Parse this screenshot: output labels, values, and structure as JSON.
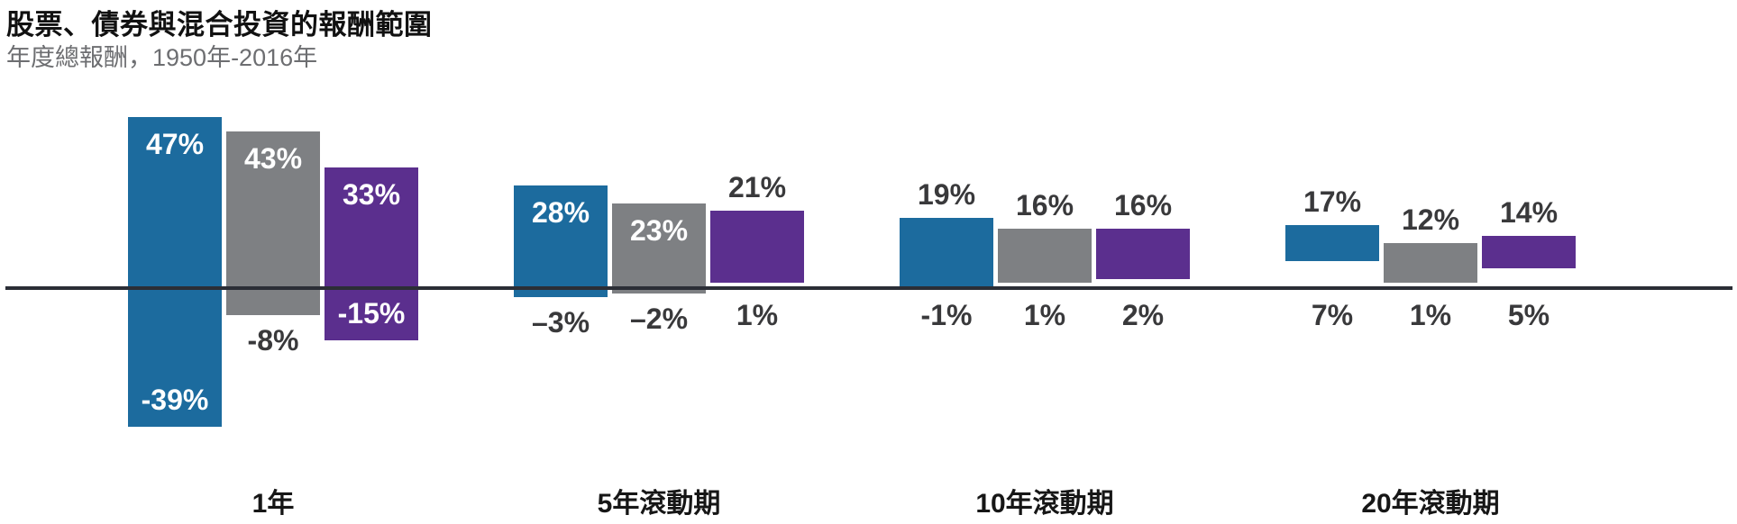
{
  "header": {
    "title": "股票、債券與混合投資的報酬範圍",
    "subtitle": "年度總報酬，1950年-2016年"
  },
  "colors": {
    "blue": "#1c6b9e",
    "gray": "#7e8083",
    "purple": "#5b2f8e",
    "zero_line": "#2b2e36",
    "outside_label": "#39393b",
    "inside_label": "#ffffff",
    "subtitle_text": "#6d6e71"
  },
  "chart_data": {
    "type": "bar",
    "subtype": "floating-range-columns",
    "title": "股票、債券與混合投資的報酬範圍",
    "subtitle": "年度總報酬，1950年-2016年",
    "unit": "percent annual total return",
    "x_axis": {
      "zero_baseline": true,
      "grid": false,
      "legend": "none"
    },
    "categories": [
      "1年",
      "5年滾動期",
      "10年滾動期",
      "20年滾動期"
    ],
    "series": [
      {
        "name": "blue",
        "color": "#1c6b9e",
        "bars": [
          {
            "min": -39,
            "max": 47,
            "min_label": "-39%",
            "max_label": "47%",
            "min_inside": true,
            "max_inside": true
          },
          {
            "min": -3,
            "max": 28,
            "min_label": "–3%",
            "max_label": "28%",
            "min_inside": false,
            "max_inside": true
          },
          {
            "min": -1,
            "max": 19,
            "min_label": "-1%",
            "max_label": "19%",
            "min_inside": false,
            "max_inside": false
          },
          {
            "min": 7,
            "max": 17,
            "min_label": "7%",
            "max_label": "17%",
            "min_inside": false,
            "max_inside": false
          }
        ]
      },
      {
        "name": "gray",
        "color": "#7e8083",
        "bars": [
          {
            "min": -8,
            "max": 43,
            "min_label": "-8%",
            "max_label": "43%",
            "min_inside": false,
            "max_inside": true
          },
          {
            "min": -2,
            "max": 23,
            "min_label": "–2%",
            "max_label": "23%",
            "min_inside": false,
            "max_inside": true
          },
          {
            "min": 1,
            "max": 16,
            "min_label": "1%",
            "max_label": "16%",
            "min_inside": false,
            "max_inside": false
          },
          {
            "min": 1,
            "max": 12,
            "min_label": "1%",
            "max_label": "12%",
            "min_inside": false,
            "max_inside": false
          }
        ]
      },
      {
        "name": "purple",
        "color": "#5b2f8e",
        "bars": [
          {
            "min": -15,
            "max": 33,
            "min_label": "-15%",
            "max_label": "33%",
            "min_inside": true,
            "max_inside": true
          },
          {
            "min": 1,
            "max": 21,
            "min_label": "1%",
            "max_label": "21%",
            "min_inside": false,
            "max_inside": false
          },
          {
            "min": 2,
            "max": 16,
            "min_label": "2%",
            "max_label": "16%",
            "min_inside": false,
            "max_inside": false
          },
          {
            "min": 5,
            "max": 14,
            "min_label": "5%",
            "max_label": "14%",
            "min_inside": false,
            "max_inside": false
          }
        ]
      }
    ]
  }
}
